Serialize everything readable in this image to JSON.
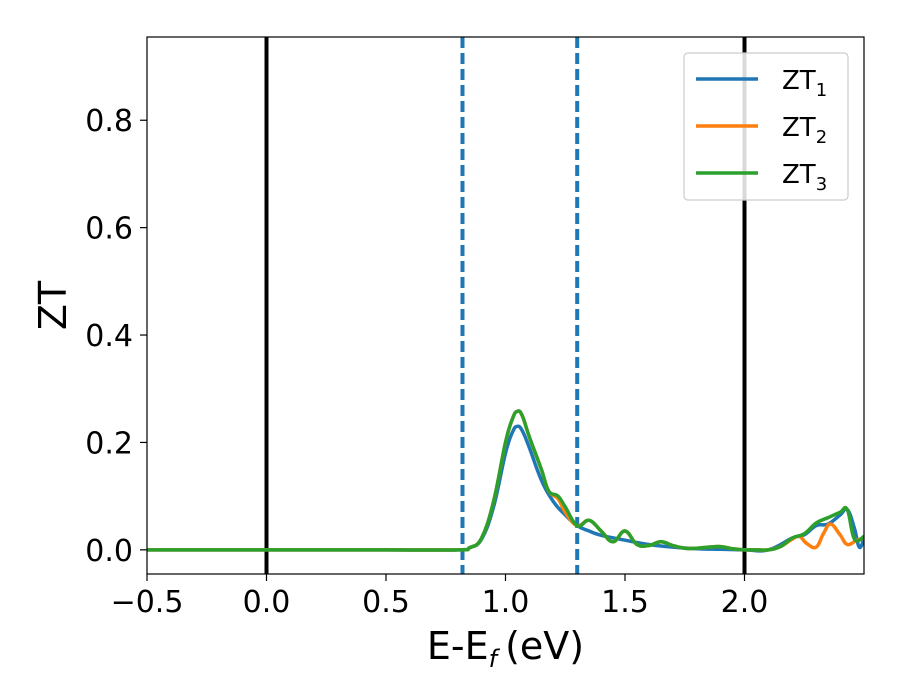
{
  "chart_data": {
    "type": "line",
    "xlabel": "E-E",
    "xlabel_sub": "f",
    "xlabel_unit": "(eV)",
    "ylabel": "ZT",
    "xlim": [
      -0.5,
      2.5
    ],
    "ylim": [
      -0.045,
      0.955
    ],
    "xticks": [
      -0.5,
      0.0,
      0.5,
      1.0,
      1.5,
      2.0
    ],
    "xtick_labels": [
      "−0.5",
      "0.0",
      "0.5",
      "1.0",
      "1.5",
      "2.0"
    ],
    "yticks": [
      0.0,
      0.2,
      0.4,
      0.6,
      0.8
    ],
    "ytick_labels": [
      "0.0",
      "0.2",
      "0.4",
      "0.6",
      "0.8"
    ],
    "grid": false,
    "legend_position": "top-right",
    "colors": {
      "ZT1": "#1f77b4",
      "ZT2": "#ff7f0e",
      "ZT3": "#2ca02c",
      "solid_vline": "#000000",
      "dashed_vline": "#1f77b4"
    },
    "vlines": [
      {
        "x": 0.0,
        "style": "solid",
        "color": "#000000"
      },
      {
        "x": 2.0,
        "style": "solid",
        "color": "#000000"
      },
      {
        "x": 0.82,
        "style": "dashed",
        "color": "#1f77b4"
      },
      {
        "x": 1.3,
        "style": "dashed",
        "color": "#1f77b4"
      }
    ],
    "series": [
      {
        "name": "ZT",
        "sub": "1",
        "color": "#1f77b4",
        "x": [
          -0.5,
          0.0,
          0.5,
          0.8,
          0.85,
          0.9,
          0.95,
          1.0,
          1.03,
          1.05,
          1.07,
          1.1,
          1.15,
          1.2,
          1.25,
          1.3,
          1.35,
          1.4,
          1.5,
          1.6,
          1.7,
          1.8,
          1.9,
          2.0,
          2.1,
          2.2,
          2.25,
          2.3,
          2.35,
          2.4,
          2.43,
          2.46,
          2.48,
          2.5
        ],
        "y": [
          0.0,
          0.0,
          0.0,
          0.0,
          0.004,
          0.02,
          0.08,
          0.18,
          0.22,
          0.23,
          0.222,
          0.19,
          0.13,
          0.09,
          0.065,
          0.045,
          0.035,
          0.027,
          0.018,
          0.01,
          0.005,
          0.002,
          0.001,
          0.0,
          0.0,
          0.022,
          0.028,
          0.045,
          0.048,
          0.065,
          0.075,
          0.04,
          0.005,
          0.02
        ]
      },
      {
        "name": "ZT",
        "sub": "2",
        "color": "#ff7f0e",
        "x": [
          -0.5,
          0.0,
          0.5,
          0.8,
          0.85,
          0.9,
          0.95,
          1.0,
          1.03,
          1.05,
          1.07,
          1.1,
          1.15,
          1.18,
          1.22,
          1.25,
          1.3,
          1.35,
          1.4,
          1.45,
          1.5,
          1.55,
          1.6,
          1.65,
          1.7,
          1.75,
          1.8,
          1.85,
          1.9,
          1.95,
          2.0,
          2.05,
          2.1,
          2.15,
          2.2,
          2.23,
          2.26,
          2.3,
          2.33,
          2.36,
          2.4,
          2.43,
          2.47,
          2.5
        ],
        "y": [
          0.0,
          0.0,
          0.0,
          0.0,
          0.004,
          0.022,
          0.09,
          0.2,
          0.245,
          0.258,
          0.25,
          0.21,
          0.15,
          0.11,
          0.095,
          0.07,
          0.045,
          0.055,
          0.035,
          0.015,
          0.035,
          0.01,
          0.008,
          0.015,
          0.008,
          0.003,
          0.003,
          0.005,
          0.006,
          0.002,
          0.0,
          0.0,
          0.0,
          0.006,
          0.02,
          0.025,
          0.012,
          0.005,
          0.03,
          0.048,
          0.028,
          0.01,
          0.018,
          0.022
        ]
      },
      {
        "name": "ZT",
        "sub": "3",
        "color": "#2ca02c",
        "x": [
          -0.5,
          0.0,
          0.5,
          0.8,
          0.85,
          0.9,
          0.95,
          1.0,
          1.03,
          1.05,
          1.07,
          1.1,
          1.15,
          1.18,
          1.22,
          1.25,
          1.3,
          1.35,
          1.4,
          1.45,
          1.5,
          1.55,
          1.6,
          1.65,
          1.7,
          1.75,
          1.8,
          1.85,
          1.9,
          1.95,
          2.0,
          2.05,
          2.1,
          2.15,
          2.2,
          2.25,
          2.3,
          2.35,
          2.4,
          2.43,
          2.46,
          2.5
        ],
        "y": [
          0.0,
          0.0,
          0.0,
          0.0,
          0.004,
          0.022,
          0.09,
          0.2,
          0.245,
          0.258,
          0.25,
          0.21,
          0.15,
          0.11,
          0.1,
          0.08,
          0.045,
          0.055,
          0.035,
          0.015,
          0.035,
          0.01,
          0.008,
          0.015,
          0.008,
          0.003,
          0.003,
          0.005,
          0.006,
          0.002,
          0.0,
          0.0,
          0.0,
          0.006,
          0.022,
          0.03,
          0.05,
          0.06,
          0.07,
          0.075,
          0.02,
          0.025
        ]
      }
    ]
  }
}
